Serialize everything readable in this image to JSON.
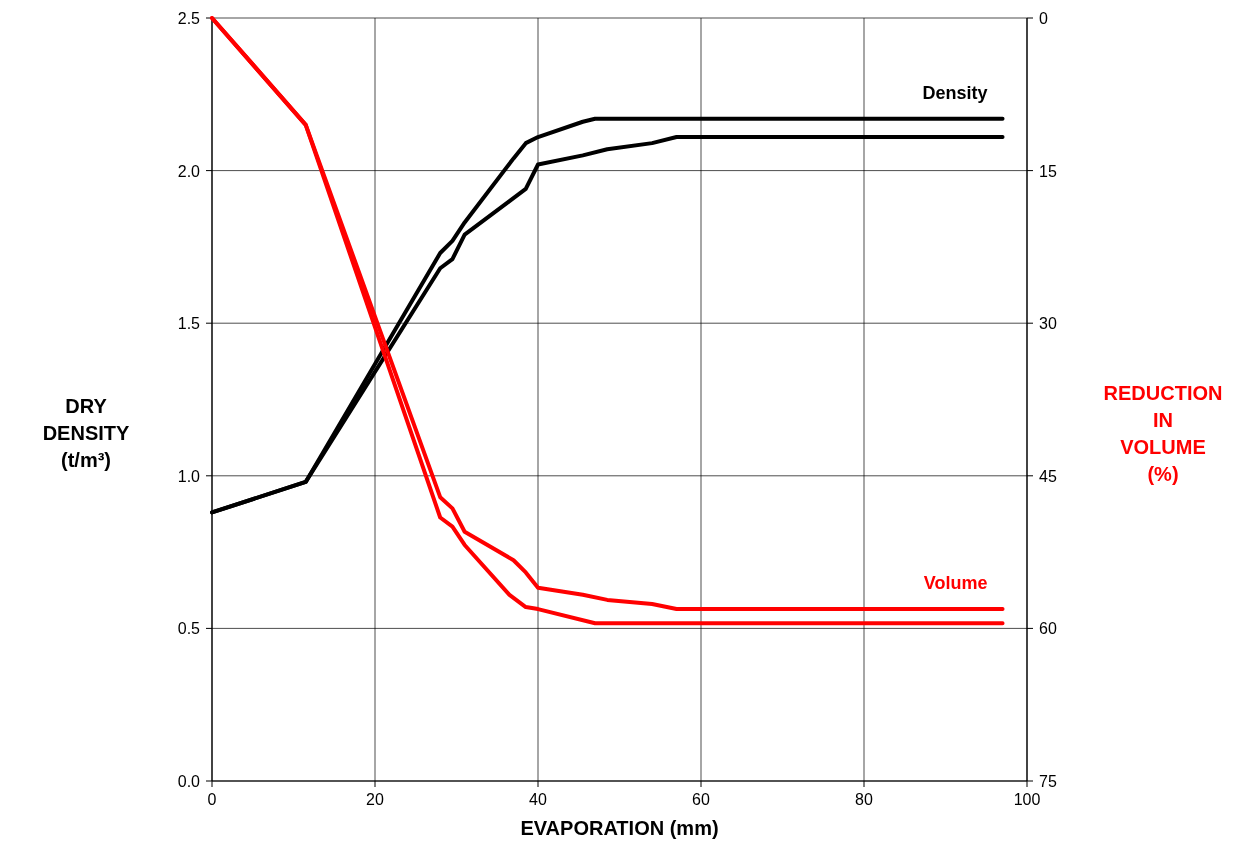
{
  "chart_data": {
    "type": "line",
    "xlabel": "EVAPORATION (mm)",
    "ylabel": "DRY DENSITY (t/m³)",
    "y2label": "REDUCTION IN VOLUME (%)",
    "xlim": [
      0,
      100
    ],
    "xticks": [
      0,
      20,
      40,
      60,
      80,
      100
    ],
    "ylim": [
      0,
      2.5
    ],
    "yticks": [
      {
        "value": 0,
        "label": "0.0"
      },
      {
        "value": 0.5,
        "label": "0.5"
      },
      {
        "value": 1,
        "label": "1.0"
      },
      {
        "value": 1.5,
        "label": "1.5"
      },
      {
        "value": 2,
        "label": "2.0"
      },
      {
        "value": 2.5,
        "label": "2.5"
      }
    ],
    "y2lim": [
      75,
      0
    ],
    "y2ticks": [
      0,
      15,
      30,
      45,
      60,
      75
    ],
    "grid": true,
    "marker": "none",
    "line_style": "solid",
    "series": [
      {
        "name": "Density",
        "color": "#000000",
        "x": [
          0,
          11.5,
          28,
          29.5,
          31,
          37,
          38.5,
          40,
          45.5,
          47,
          97
        ],
        "values": [
          0.88,
          0.98,
          1.73,
          1.77,
          1.83,
          2.04,
          2.09,
          2.11,
          2.16,
          2.17,
          2.17
        ]
      },
      {
        "color": "#000000",
        "x": [
          0,
          11.5,
          28,
          29.5,
          31,
          36.5,
          38.5,
          40,
          45.5,
          48.5,
          54,
          57,
          97
        ],
        "values": [
          0.88,
          0.98,
          1.68,
          1.71,
          1.79,
          1.9,
          1.94,
          2.02,
          2.05,
          2.07,
          2.09,
          2.11,
          2.11
        ]
      },
      {
        "name": "Volume",
        "color": "#ff0000",
        "axis": "y2",
        "x": [
          0,
          11.5,
          28,
          29.5,
          31,
          37,
          38.5,
          40,
          45.5,
          48.5,
          54,
          57,
          97
        ],
        "values": [
          0,
          10.5,
          47.1,
          48.2,
          50.5,
          53.3,
          54.5,
          56,
          56.7,
          57.2,
          57.6,
          58.1,
          58.1
        ]
      },
      {
        "color": "#ff0000",
        "axis": "y2",
        "x": [
          0,
          11.5,
          28,
          29.5,
          31,
          36.5,
          38.5,
          40,
          47,
          97
        ],
        "values": [
          0,
          10.5,
          49.1,
          50,
          51.8,
          56.7,
          57.9,
          58.1,
          59.5,
          59.5
        ]
      }
    ]
  }
}
